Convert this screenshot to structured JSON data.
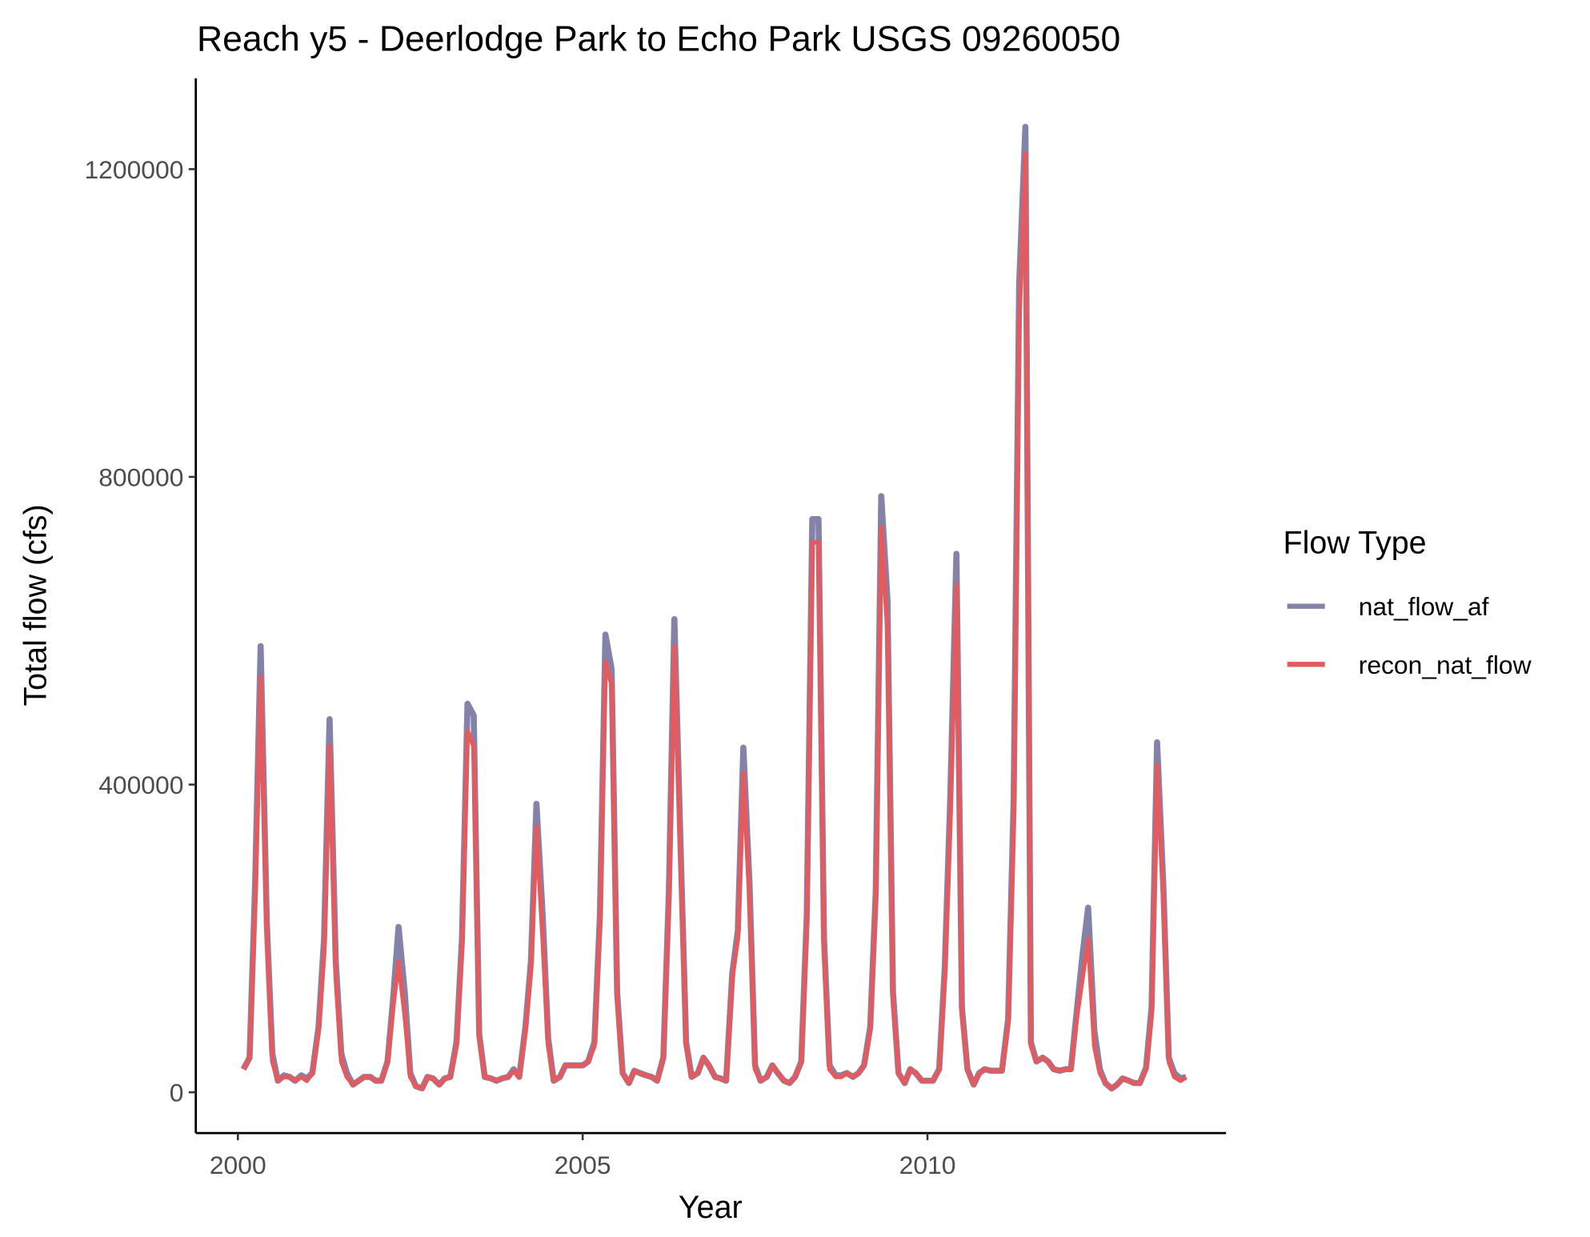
{
  "chart_data": {
    "type": "line",
    "title": "Reach y5 - Deerlodge Park to Echo Park USGS 09260050",
    "x_label": "Year",
    "y_label": "Total flow (cfs)",
    "legend_title": "Flow Type",
    "legend_position": "right",
    "grid": false,
    "xlim": [
      1999.39,
      2014.33
    ],
    "ylim": [
      -53000,
      1317900
    ],
    "xticks": [
      2000,
      2005,
      2010
    ],
    "yticks": [
      0,
      400000,
      800000,
      1200000
    ],
    "x": [
      2000.08,
      2000.17,
      2000.25,
      2000.33,
      2000.42,
      2000.5,
      2000.58,
      2000.67,
      2000.75,
      2000.83,
      2000.92,
      2001.0,
      2001.08,
      2001.17,
      2001.25,
      2001.33,
      2001.42,
      2001.5,
      2001.58,
      2001.67,
      2001.75,
      2001.83,
      2001.92,
      2002.0,
      2002.08,
      2002.17,
      2002.25,
      2002.33,
      2002.42,
      2002.5,
      2002.58,
      2002.67,
      2002.75,
      2002.83,
      2002.92,
      2003.0,
      2003.08,
      2003.17,
      2003.25,
      2003.33,
      2003.42,
      2003.5,
      2003.58,
      2003.67,
      2003.75,
      2003.83,
      2003.92,
      2004.0,
      2004.08,
      2004.17,
      2004.25,
      2004.33,
      2004.42,
      2004.5,
      2004.58,
      2004.67,
      2004.75,
      2004.83,
      2004.92,
      2005.0,
      2005.08,
      2005.17,
      2005.25,
      2005.33,
      2005.42,
      2005.5,
      2005.58,
      2005.67,
      2005.75,
      2005.83,
      2005.92,
      2006.0,
      2006.08,
      2006.17,
      2006.25,
      2006.33,
      2006.42,
      2006.5,
      2006.58,
      2006.67,
      2006.75,
      2006.83,
      2006.92,
      2007.0,
      2007.08,
      2007.17,
      2007.25,
      2007.33,
      2007.42,
      2007.5,
      2007.58,
      2007.67,
      2007.75,
      2007.83,
      2007.92,
      2008.0,
      2008.08,
      2008.17,
      2008.25,
      2008.33,
      2008.42,
      2008.5,
      2008.58,
      2008.67,
      2008.75,
      2008.83,
      2008.92,
      2009.0,
      2009.08,
      2009.17,
      2009.25,
      2009.33,
      2009.42,
      2009.5,
      2009.58,
      2009.67,
      2009.75,
      2009.83,
      2009.92,
      2010.0,
      2010.08,
      2010.17,
      2010.25,
      2010.33,
      2010.42,
      2010.5,
      2010.58,
      2010.67,
      2010.75,
      2010.83,
      2010.92,
      2011.0,
      2011.08,
      2011.17,
      2011.25,
      2011.33,
      2011.42,
      2011.5,
      2011.58,
      2011.67,
      2011.75,
      2011.83,
      2011.92,
      2012.0,
      2012.08,
      2012.17,
      2012.25,
      2012.33,
      2012.42,
      2012.5,
      2012.58,
      2012.67,
      2012.75,
      2012.83,
      2012.92,
      2013.0,
      2013.08,
      2013.17,
      2013.25,
      2013.33,
      2013.42,
      2013.5,
      2013.58,
      2013.67,
      2013.75
    ],
    "series": [
      {
        "name": "nat_flow_af",
        "color": "#8383aa",
        "values": [
          30000,
          45000,
          270000,
          580000,
          220000,
          50000,
          15000,
          22000,
          20000,
          15000,
          22000,
          18000,
          25000,
          85000,
          200000,
          485000,
          170000,
          50000,
          25000,
          10000,
          15000,
          20000,
          20000,
          15000,
          15000,
          40000,
          120000,
          215000,
          130000,
          25000,
          8000,
          5000,
          20000,
          18000,
          10000,
          18000,
          20000,
          65000,
          200000,
          505000,
          490000,
          75000,
          20000,
          18000,
          15000,
          18000,
          20000,
          30000,
          20000,
          85000,
          170000,
          375000,
          230000,
          70000,
          15000,
          20000,
          35000,
          35000,
          35000,
          35000,
          40000,
          65000,
          230000,
          595000,
          550000,
          130000,
          25000,
          12000,
          28000,
          25000,
          22000,
          20000,
          15000,
          45000,
          260000,
          615000,
          320000,
          65000,
          20000,
          25000,
          45000,
          35000,
          20000,
          18000,
          15000,
          155000,
          210000,
          448000,
          270000,
          35000,
          15000,
          20000,
          35000,
          25000,
          15000,
          12000,
          20000,
          40000,
          230000,
          745000,
          745000,
          200000,
          35000,
          22000,
          22000,
          25000,
          20000,
          25000,
          35000,
          85000,
          260000,
          775000,
          640000,
          130000,
          25000,
          12000,
          30000,
          25000,
          15000,
          15000,
          15000,
          30000,
          160000,
          380000,
          700000,
          110000,
          30000,
          10000,
          25000,
          30000,
          28000,
          28000,
          28000,
          95000,
          380000,
          1050000,
          1255000,
          65000,
          40000,
          45000,
          40000,
          30000,
          28000,
          30000,
          30000,
          110000,
          180000,
          240000,
          80000,
          30000,
          12000,
          5000,
          10000,
          18000,
          15000,
          12000,
          12000,
          32000,
          110000,
          455000,
          270000,
          45000,
          25000,
          18000,
          20000
        ]
      },
      {
        "name": "recon_nat_flow",
        "color": "#e35b5f",
        "values": [
          30000,
          45000,
          250000,
          540000,
          200000,
          40000,
          15000,
          20000,
          20000,
          15000,
          20000,
          15000,
          25000,
          80000,
          180000,
          450000,
          150000,
          40000,
          20000,
          10000,
          15000,
          20000,
          20000,
          15000,
          15000,
          40000,
          110000,
          170000,
          100000,
          20000,
          8000,
          5000,
          20000,
          18000,
          10000,
          18000,
          20000,
          60000,
          190000,
          470000,
          450000,
          70000,
          20000,
          18000,
          15000,
          18000,
          20000,
          28000,
          20000,
          80000,
          160000,
          345000,
          200000,
          60000,
          15000,
          20000,
          35000,
          35000,
          35000,
          35000,
          40000,
          60000,
          220000,
          560000,
          530000,
          120000,
          25000,
          12000,
          28000,
          25000,
          22000,
          20000,
          15000,
          45000,
          250000,
          580000,
          300000,
          60000,
          20000,
          25000,
          45000,
          35000,
          20000,
          18000,
          15000,
          150000,
          200000,
          415000,
          250000,
          30000,
          15000,
          20000,
          35000,
          25000,
          15000,
          12000,
          20000,
          40000,
          220000,
          715000,
          715000,
          180000,
          30000,
          20000,
          20000,
          25000,
          20000,
          25000,
          35000,
          80000,
          250000,
          735000,
          600000,
          120000,
          25000,
          12000,
          30000,
          25000,
          15000,
          15000,
          15000,
          30000,
          150000,
          350000,
          660000,
          100000,
          30000,
          10000,
          25000,
          30000,
          28000,
          28000,
          28000,
          90000,
          350000,
          1000000,
          1220000,
          60000,
          40000,
          45000,
          40000,
          30000,
          28000,
          30000,
          30000,
          100000,
          150000,
          200000,
          60000,
          25000,
          12000,
          5000,
          10000,
          18000,
          15000,
          12000,
          12000,
          30000,
          100000,
          425000,
          250000,
          40000,
          20000,
          15000,
          20000
        ]
      }
    ]
  }
}
